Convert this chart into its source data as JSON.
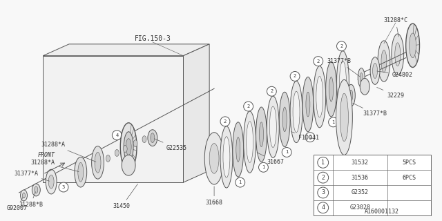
{
  "background_color": "#f8f8f8",
  "line_color": "#555555",
  "fig_label": "FIG.150-3",
  "diagram_id": "A160001132",
  "legend_items": [
    {
      "num": "1",
      "code": "31532",
      "qty": "5PCS"
    },
    {
      "num": "2",
      "code": "31536",
      "qty": "6PCS"
    },
    {
      "num": "3",
      "code": "G2352",
      "qty": ""
    },
    {
      "num": "4",
      "code": "G23028",
      "qty": ""
    }
  ]
}
